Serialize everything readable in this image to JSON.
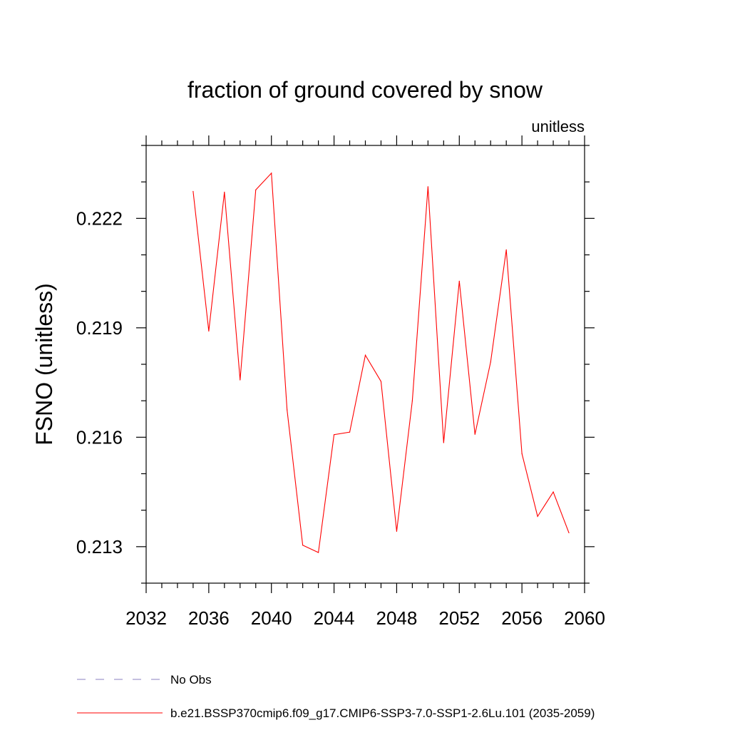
{
  "chart_data": {
    "type": "line",
    "title": "fraction of ground covered by snow",
    "subtitle": "unitless",
    "ylabel": "FSNO  (unitless)",
    "xlabel": "",
    "xlim": [
      2032,
      2060
    ],
    "ylim": [
      0.212,
      0.224
    ],
    "x_ticks": [
      2032,
      2036,
      2040,
      2044,
      2048,
      2052,
      2056,
      2060
    ],
    "x_tick_labels": [
      "2032",
      "2036",
      "2040",
      "2044",
      "2048",
      "2052",
      "2056",
      "2060"
    ],
    "x_minor_step": 1,
    "y_ticks": [
      0.213,
      0.216,
      0.219,
      0.222
    ],
    "y_tick_labels": [
      "0.213",
      "0.216",
      "0.219",
      "0.222"
    ],
    "y_minor_step": 0.001,
    "grid": false,
    "legend_placement": "bottom",
    "series": [
      {
        "name": "No Obs",
        "color": "#8a7fc0",
        "dash": "dashed",
        "x": [],
        "values": []
      },
      {
        "name": "b.e21.BSSP370cmip6.f09_g17.CMIP6-SSP3-7.0-SSP1-2.6Lu.101 (2035-2059)",
        "color": "#ff0000",
        "dash": "solid",
        "x": [
          2035,
          2036,
          2037,
          2038,
          2039,
          2040,
          2041,
          2042,
          2043,
          2044,
          2045,
          2046,
          2047,
          2048,
          2049,
          2050,
          2051,
          2052,
          2053,
          2054,
          2055,
          2056,
          2057,
          2058,
          2059
        ],
        "values": [
          0.22274,
          0.21891,
          0.22272,
          0.21757,
          0.22278,
          0.22324,
          0.21675,
          0.21304,
          0.21284,
          0.21607,
          0.21614,
          0.21825,
          0.21753,
          0.21342,
          0.217,
          0.22287,
          0.21585,
          0.22028,
          0.21608,
          0.21806,
          0.22114,
          0.21555,
          0.21383,
          0.2145,
          0.21338
        ]
      }
    ]
  }
}
